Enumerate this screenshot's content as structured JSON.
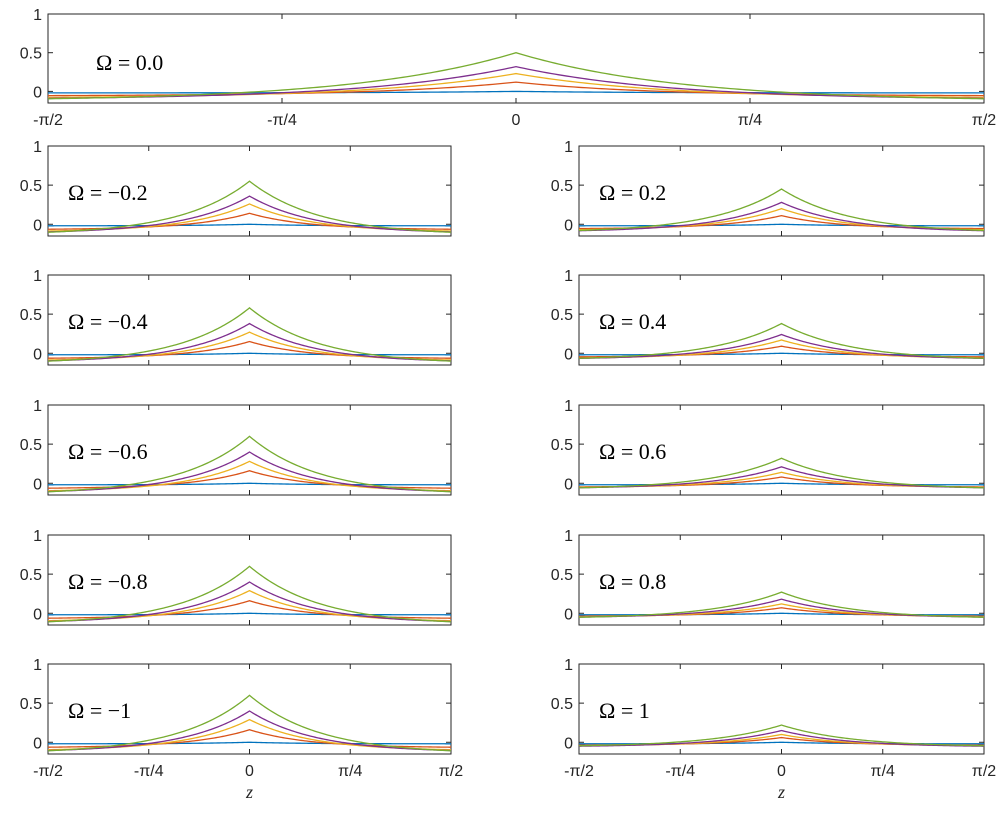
{
  "chart_data": {
    "type": "line",
    "panel_count": 11,
    "x_tick_labels": [
      "-π/2",
      "-π/4",
      "0",
      "π/4",
      "π/2"
    ],
    "y_tick_labels": [
      "1",
      "0.5",
      "0"
    ],
    "xlabel": "z",
    "xlim": [
      -1.5708,
      1.5708
    ],
    "ylim": [
      -0.15,
      1
    ],
    "series_colors": [
      "#0072BD",
      "#D95319",
      "#EDB120",
      "#7E2F8E",
      "#77AC30"
    ],
    "panels": [
      {
        "label": "Ω = 0.0",
        "omega": 0.0,
        "peaks": [
          0.0,
          0.12,
          0.23,
          0.32,
          0.5
        ],
        "tails": [
          -0.02,
          -0.06,
          -0.09,
          -0.11,
          -0.13
        ]
      },
      {
        "label": "Ω = −0.2",
        "omega": -0.2,
        "peaks": [
          0.0,
          0.14,
          0.26,
          0.36,
          0.55
        ],
        "tails": [
          -0.02,
          -0.07,
          -0.1,
          -0.12,
          -0.14
        ]
      },
      {
        "label": "Ω = 0.2",
        "omega": 0.2,
        "peaks": [
          0.0,
          0.11,
          0.2,
          0.28,
          0.45
        ],
        "tails": [
          -0.02,
          -0.06,
          -0.08,
          -0.1,
          -0.11
        ]
      },
      {
        "label": "Ω = −0.4",
        "omega": -0.4,
        "peaks": [
          0.0,
          0.15,
          0.27,
          0.38,
          0.58
        ],
        "tails": [
          -0.02,
          -0.07,
          -0.1,
          -0.12,
          -0.14
        ]
      },
      {
        "label": "Ω = 0.4",
        "omega": 0.4,
        "peaks": [
          0.0,
          0.09,
          0.17,
          0.24,
          0.38
        ],
        "tails": [
          -0.02,
          -0.05,
          -0.07,
          -0.08,
          -0.09
        ]
      },
      {
        "label": "Ω = −0.6",
        "omega": -0.6,
        "peaks": [
          0.0,
          0.16,
          0.28,
          0.4,
          0.6
        ],
        "tails": [
          -0.02,
          -0.07,
          -0.11,
          -0.13,
          -0.15
        ]
      },
      {
        "label": "Ω = 0.6",
        "omega": 0.6,
        "peaks": [
          0.0,
          0.08,
          0.14,
          0.21,
          0.32
        ],
        "tails": [
          -0.02,
          -0.05,
          -0.06,
          -0.07,
          -0.08
        ]
      },
      {
        "label": "Ω = −0.8",
        "omega": -0.8,
        "peaks": [
          0.0,
          0.16,
          0.29,
          0.4,
          0.6
        ],
        "tails": [
          -0.02,
          -0.07,
          -0.11,
          -0.13,
          -0.15
        ]
      },
      {
        "label": "Ω = 0.8",
        "omega": 0.8,
        "peaks": [
          0.0,
          0.07,
          0.12,
          0.18,
          0.27
        ],
        "tails": [
          -0.02,
          -0.04,
          -0.05,
          -0.06,
          -0.07
        ]
      },
      {
        "label": "Ω = −1",
        "omega": -1,
        "peaks": [
          0.0,
          0.16,
          0.29,
          0.4,
          0.6
        ],
        "tails": [
          -0.02,
          -0.07,
          -0.11,
          -0.13,
          -0.15
        ]
      },
      {
        "label": "Ω = 1",
        "omega": 1,
        "peaks": [
          0.0,
          0.06,
          0.1,
          0.15,
          0.22
        ],
        "tails": [
          -0.02,
          -0.04,
          -0.05,
          -0.06,
          -0.06
        ]
      }
    ]
  }
}
